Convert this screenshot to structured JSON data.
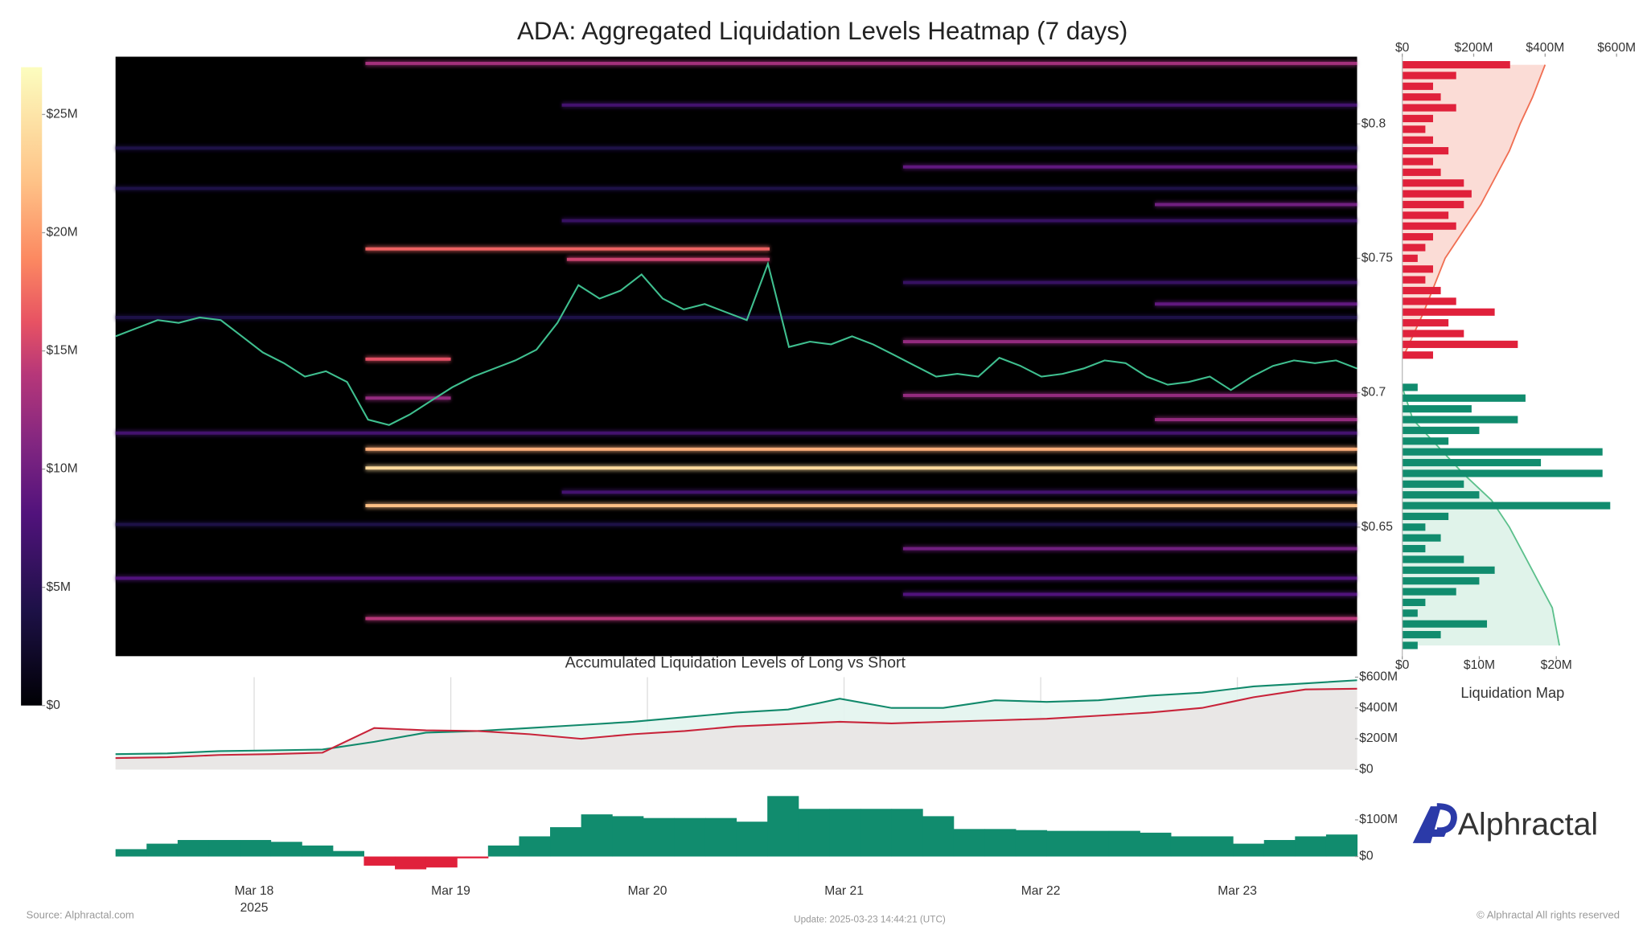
{
  "chart_data": [
    {
      "type": "heatmap",
      "title": "ADA: Aggregated Liquidation Levels Heatmap (7 days)",
      "xlim": [
        "2025-03-17T07:05Z",
        "2025-03-23T14:37Z"
      ],
      "xticks": [
        {
          "value": "2025-03-18T00:00Z",
          "label": "Mar 18"
        },
        {
          "value": "2025-03-19T00:00Z",
          "label": "Mar 19"
        },
        {
          "value": "2025-03-20T00:00Z",
          "label": "Mar 20"
        },
        {
          "value": "2025-03-21T00:00Z",
          "label": "Mar 21"
        },
        {
          "value": "2025-03-22T00:00Z",
          "label": "Mar 22"
        },
        {
          "value": "2025-03-23T00:00Z",
          "label": "Mar 23"
        }
      ],
      "year_label": "2025",
      "ylim": [
        0.602,
        0.825
      ],
      "yticks": [
        {
          "value": 0.65,
          "label": "$0.65"
        },
        {
          "value": 0.7,
          "label": "$0.7"
        },
        {
          "value": 0.75,
          "label": "$0.75"
        },
        {
          "value": 0.8,
          "label": "$0.8"
        }
      ],
      "colormap": "magma",
      "colorbar": {
        "ylim": [
          0,
          27
        ],
        "yticks": [
          {
            "value": 0,
            "label": "$0"
          },
          {
            "value": 5,
            "label": "$5M"
          },
          {
            "value": 10,
            "label": "$10M"
          },
          {
            "value": 15,
            "label": "$15M"
          },
          {
            "value": 20,
            "label": "$20M"
          },
          {
            "value": 25,
            "label": "$25M"
          }
        ]
      },
      "bands": [
        {
          "price": 0.8225,
          "start": "2025-03-18T13:35Z",
          "value": 13
        },
        {
          "price": 0.807,
          "start": "2025-03-19T13:33Z",
          "value": 7
        },
        {
          "price": 0.791,
          "start": "2025-03-17T07:05Z",
          "value": 4
        },
        {
          "price": 0.784,
          "start": "2025-03-21T07:12Z",
          "value": 9
        },
        {
          "price": 0.776,
          "start": "2025-03-17T07:05Z",
          "value": 4
        },
        {
          "price": 0.77,
          "start": "2025-03-22T13:56Z",
          "value": 10
        },
        {
          "price": 0.764,
          "start": "2025-03-19T13:33Z",
          "value": 6
        },
        {
          "price": 0.7535,
          "start": "2025-03-18T13:35Z",
          "end": "2025-03-20T14:55Z",
          "value": 17
        },
        {
          "price": 0.7496,
          "start": "2025-03-19T14:10Z",
          "end": "2025-03-20T14:55Z",
          "value": 15
        },
        {
          "price": 0.741,
          "start": "2025-03-21T07:12Z",
          "value": 6
        },
        {
          "price": 0.733,
          "start": "2025-03-22T13:56Z",
          "value": 9
        },
        {
          "price": 0.728,
          "start": "2025-03-17T07:05Z",
          "value": 4
        },
        {
          "price": 0.719,
          "start": "2025-03-21T07:12Z",
          "value": 12
        },
        {
          "price": 0.7125,
          "start": "2025-03-18T13:35Z",
          "end": "2025-03-19T00:00Z",
          "value": 16
        },
        {
          "price": 0.699,
          "start": "2025-03-21T07:12Z",
          "value": 12
        },
        {
          "price": 0.698,
          "start": "2025-03-18T13:35Z",
          "end": "2025-03-19T00:00Z",
          "value": 12
        },
        {
          "price": 0.69,
          "start": "2025-03-22T13:56Z",
          "value": 12
        },
        {
          "price": 0.685,
          "start": "2025-03-17T07:05Z",
          "value": 7
        },
        {
          "price": 0.679,
          "start": "2025-03-18T13:35Z",
          "value": 21
        },
        {
          "price": 0.672,
          "start": "2025-03-18T13:35Z",
          "value": 24
        },
        {
          "price": 0.663,
          "start": "2025-03-19T13:33Z",
          "value": 7
        },
        {
          "price": 0.658,
          "start": "2025-03-18T13:35Z",
          "value": 22
        },
        {
          "price": 0.651,
          "start": "2025-03-17T07:05Z",
          "value": 4
        },
        {
          "price": 0.642,
          "start": "2025-03-21T07:12Z",
          "value": 10
        },
        {
          "price": 0.631,
          "start": "2025-03-17T07:05Z",
          "value": 8
        },
        {
          "price": 0.625,
          "start": "2025-03-21T07:12Z",
          "value": 8
        },
        {
          "price": 0.616,
          "start": "2025-03-18T13:35Z",
          "value": 14
        }
      ],
      "price": {
        "color": "#3fbf8f",
        "values": [
          0.721,
          0.724,
          0.727,
          0.726,
          0.728,
          0.727,
          0.721,
          0.715,
          0.711,
          0.706,
          0.708,
          0.704,
          0.69,
          0.688,
          0.692,
          0.697,
          0.702,
          0.706,
          0.709,
          0.712,
          0.716,
          0.726,
          0.74,
          0.735,
          0.738,
          0.744,
          0.735,
          0.731,
          0.733,
          0.73,
          0.727,
          0.748,
          0.717,
          0.719,
          0.718,
          0.721,
          0.718,
          0.714,
          0.71,
          0.706,
          0.707,
          0.706,
          0.713,
          0.71,
          0.706,
          0.707,
          0.709,
          0.712,
          0.711,
          0.706,
          0.703,
          0.704,
          0.706,
          0.701,
          0.706,
          0.71,
          0.712,
          0.711,
          0.712,
          0.709
        ]
      }
    },
    {
      "type": "hbar",
      "title": "Liquidation Map",
      "ylim": [
        0.602,
        0.825
      ],
      "xlim": [
        0,
        30
      ],
      "xticks": [
        {
          "value": 0,
          "label": "$0"
        },
        {
          "value": 10,
          "label": "$10M"
        },
        {
          "value": 20,
          "label": "$20M"
        }
      ],
      "x2lim": [
        0,
        647
      ],
      "x2ticks": [
        {
          "value": 0,
          "label": "$0"
        },
        {
          "value": 200,
          "label": "$200M"
        },
        {
          "value": 400,
          "label": "$400M"
        },
        {
          "value": 600,
          "label": "$600M"
        }
      ],
      "series": [
        {
          "color": "#f06e52",
          "fill": "#fbdcd6",
          "axis": "x2",
          "prices": [
            0.714,
            0.73,
            0.75,
            0.76,
            0.77,
            0.78,
            0.79,
            0.8,
            0.81,
            0.822
          ],
          "values": [
            5,
            60,
            120,
            170,
            220,
            260,
            300,
            330,
            365,
            400
          ]
        },
        {
          "color": "#5cc08c",
          "fill": "#e0f3ea",
          "axis": "x2",
          "prices": [
            0.702,
            0.69,
            0.68,
            0.67,
            0.66,
            0.65,
            0.64,
            0.63,
            0.62,
            0.606
          ],
          "values": [
            0,
            30,
            100,
            170,
            250,
            300,
            340,
            380,
            420,
            440
          ]
        },
        {
          "color": "#e0213b",
          "prices": [
            0.822,
            0.818,
            0.814,
            0.81,
            0.806,
            0.802,
            0.798,
            0.794,
            0.79,
            0.786,
            0.782,
            0.778,
            0.774,
            0.77,
            0.766,
            0.762,
            0.758,
            0.754,
            0.75,
            0.746,
            0.742,
            0.738,
            0.734,
            0.73,
            0.726,
            0.722,
            0.718,
            0.714
          ],
          "values": [
            14,
            7,
            4,
            5,
            7,
            4,
            3,
            4,
            6,
            4,
            5,
            8,
            9,
            8,
            6,
            7,
            4,
            3,
            2,
            4,
            3,
            5,
            7,
            12,
            6,
            8,
            15,
            4
          ]
        },
        {
          "color": "#118c6e",
          "prices": [
            0.702,
            0.698,
            0.694,
            0.69,
            0.686,
            0.682,
            0.678,
            0.674,
            0.67,
            0.666,
            0.662,
            0.658,
            0.654,
            0.65,
            0.646,
            0.642,
            0.638,
            0.634,
            0.63,
            0.626,
            0.622,
            0.618,
            0.614,
            0.61,
            0.606
          ],
          "values": [
            2,
            16,
            9,
            15,
            10,
            6,
            26,
            18,
            26,
            8,
            10,
            27,
            6,
            3,
            5,
            3,
            8,
            12,
            10,
            7,
            3,
            2,
            11,
            5,
            2
          ]
        }
      ]
    },
    {
      "type": "line",
      "title": "Accumulated Liquidation Levels of Long vs Short",
      "ylim": [
        0,
        600
      ],
      "yticks": [
        {
          "value": 0,
          "label": "$0"
        },
        {
          "value": 200,
          "label": "$200M"
        },
        {
          "value": 400,
          "label": "$400M"
        },
        {
          "value": 600,
          "label": "$600M"
        }
      ],
      "series": [
        {
          "color": "#11896b",
          "fill": "#e3f4ee",
          "values": [
            100,
            105,
            120,
            125,
            130,
            180,
            240,
            250,
            270,
            290,
            310,
            340,
            370,
            390,
            460,
            400,
            400,
            450,
            440,
            450,
            480,
            500,
            540,
            560,
            580
          ]
        },
        {
          "color": "#c8243a",
          "fill": "#e9e6e4",
          "values": [
            75,
            80,
            95,
            100,
            110,
            270,
            255,
            250,
            230,
            200,
            230,
            250,
            280,
            295,
            310,
            300,
            310,
            320,
            330,
            350,
            370,
            400,
            470,
            520,
            525
          ]
        }
      ]
    },
    {
      "type": "bar",
      "ylim": [
        -55,
        200
      ],
      "yticks": [
        {
          "value": 0,
          "label": "$0"
        },
        {
          "value": 100,
          "label": "$100M"
        }
      ],
      "color": "#118c6e",
      "negative_color": "#e0213b",
      "values": [
        20,
        35,
        45,
        45,
        45,
        40,
        30,
        15,
        -25,
        -35,
        -30,
        -5,
        30,
        55,
        80,
        115,
        110,
        105,
        105,
        105,
        95,
        165,
        130,
        130,
        130,
        130,
        110,
        75,
        75,
        72,
        70,
        70,
        70,
        65,
        55,
        55,
        35,
        45,
        55,
        60
      ]
    }
  ],
  "logo": "Alphractal",
  "footer": {
    "source": "Source: Alphractal.com",
    "update": "Update: 2025-03-23 14:44:21 (UTC)",
    "copyright": "© Alphractal All rights reserved"
  }
}
